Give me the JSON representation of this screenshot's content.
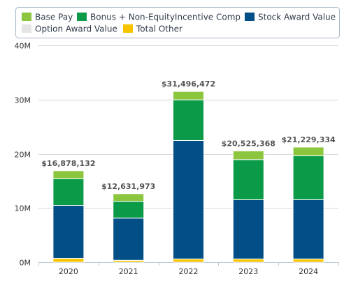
{
  "chart_data": {
    "type": "bar",
    "stacked": true,
    "categories": [
      "2020",
      "2021",
      "2022",
      "2023",
      "2024"
    ],
    "series": [
      {
        "name": "Base Pay",
        "color": "#8cc63f",
        "values": [
          1500000,
          1400000,
          1550000,
          1600000,
          1600000
        ]
      },
      {
        "name": "Bonus + Non-EquityIncentive Comp",
        "color": "#0a9a48",
        "values": [
          4900000,
          3100000,
          7500000,
          7400000,
          8100000
        ]
      },
      {
        "name": "Stock Award Value",
        "color": "#014f86",
        "values": [
          9778132,
          7781973,
          21846472,
          10925368,
          10929334
        ]
      },
      {
        "name": "Option Award Value",
        "color": "#e5e5e5",
        "values": [
          0,
          0,
          0,
          0,
          0
        ]
      },
      {
        "name": "Total Other",
        "color": "#f7c500",
        "values": [
          700000,
          350000,
          600000,
          600000,
          600000
        ]
      }
    ],
    "totals": [
      "$16,878,132",
      "$12,631,973",
      "$31,496,472",
      "$20,525,368",
      "$21,229,334"
    ],
    "y_ticks": [
      {
        "value": 0,
        "label": "0M"
      },
      {
        "value": 10000000,
        "label": "10M"
      },
      {
        "value": 20000000,
        "label": "20M"
      },
      {
        "value": 30000000,
        "label": "30M"
      },
      {
        "value": 40000000,
        "label": "40M"
      }
    ],
    "ylim": [
      0,
      40000000
    ],
    "grid": true,
    "legend_position": "top"
  }
}
